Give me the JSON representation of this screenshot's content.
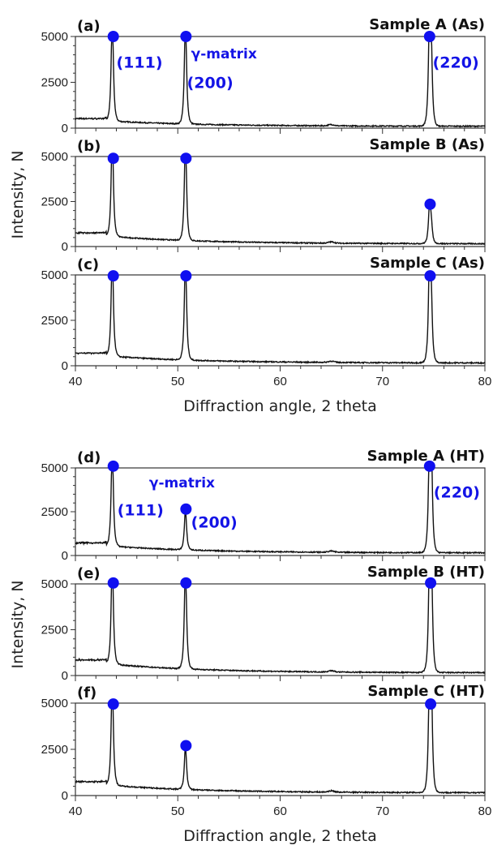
{
  "chart_data": [
    {
      "type": "line",
      "panel": "(a)",
      "title": "Sample A (As)",
      "xlim": [
        40,
        80
      ],
      "ylim": [
        0,
        5000
      ],
      "xticks": [
        40,
        50,
        60,
        70,
        80
      ],
      "yticks": [
        0,
        2500,
        5000
      ],
      "baseline": {
        "start": 520,
        "end": 100
      },
      "peaks": [
        {
          "x": 43.6,
          "y": 5000
        },
        {
          "x": 50.75,
          "y": 5000
        },
        {
          "x": 74.6,
          "y": 5000
        },
        {
          "x": 74.75,
          "y": 3000
        }
      ],
      "markers": [
        {
          "x": 43.7,
          "y": 5000
        },
        {
          "x": 50.8,
          "y": 5000
        },
        {
          "x": 74.6,
          "y": 5000
        }
      ],
      "annotations": [
        {
          "text": "(111)",
          "x": 44.0,
          "y": 3300
        },
        {
          "text": "γ-matrix",
          "x": 51.3,
          "y": 3800
        },
        {
          "text": "(200)",
          "x": 50.9,
          "y": 2200
        },
        {
          "text": "(220)",
          "x": 74.9,
          "y": 3300
        }
      ]
    },
    {
      "type": "line",
      "panel": "(b)",
      "title": "Sample B (As)",
      "xlim": [
        40,
        80
      ],
      "ylim": [
        0,
        5000
      ],
      "xticks": [
        40,
        50,
        60,
        70,
        80
      ],
      "yticks": [
        0,
        2500,
        5000
      ],
      "baseline": {
        "start": 760,
        "end": 150
      },
      "peaks": [
        {
          "x": 43.6,
          "y": 5000
        },
        {
          "x": 50.75,
          "y": 5000
        },
        {
          "x": 74.6,
          "y": 1800
        },
        {
          "x": 74.75,
          "y": 800
        }
      ],
      "markers": [
        {
          "x": 43.7,
          "y": 4900
        },
        {
          "x": 50.8,
          "y": 4900
        },
        {
          "x": 74.65,
          "y": 2350
        }
      ],
      "annotations": []
    },
    {
      "type": "line",
      "panel": "(c)",
      "title": "Sample C (As)",
      "xlim": [
        40,
        80
      ],
      "ylim": [
        0,
        5000
      ],
      "xticks": [
        40,
        50,
        60,
        70,
        80
      ],
      "yticks": [
        0,
        2500,
        5000
      ],
      "baseline": {
        "start": 700,
        "end": 150
      },
      "peaks": [
        {
          "x": 43.6,
          "y": 5000
        },
        {
          "x": 50.75,
          "y": 5000
        },
        {
          "x": 74.6,
          "y": 5000
        },
        {
          "x": 74.75,
          "y": 2400
        }
      ],
      "markers": [
        {
          "x": 43.7,
          "y": 4950
        },
        {
          "x": 50.8,
          "y": 4950
        },
        {
          "x": 74.65,
          "y": 4950
        }
      ],
      "annotations": []
    },
    {
      "type": "line",
      "panel": "(d)",
      "title": "Sample A (HT)",
      "xlim": [
        40,
        80
      ],
      "ylim": [
        0,
        5000
      ],
      "xticks": [
        40,
        50,
        60,
        70,
        80
      ],
      "yticks": [
        0,
        2500,
        5000
      ],
      "baseline": {
        "start": 720,
        "end": 150
      },
      "peaks": [
        {
          "x": 43.6,
          "y": 5000
        },
        {
          "x": 50.75,
          "y": 2000
        },
        {
          "x": 74.6,
          "y": 5000
        },
        {
          "x": 74.75,
          "y": 4800
        }
      ],
      "markers": [
        {
          "x": 43.7,
          "y": 5100
        },
        {
          "x": 50.8,
          "y": 2650
        },
        {
          "x": 74.6,
          "y": 5100
        }
      ],
      "annotations": [
        {
          "text": "γ-matrix",
          "x": 47.2,
          "y": 3900
        },
        {
          "text": "(111)",
          "x": 44.1,
          "y": 2300
        },
        {
          "text": "(200)",
          "x": 51.3,
          "y": 1600
        },
        {
          "text": "(220)",
          "x": 75.0,
          "y": 3300
        }
      ]
    },
    {
      "type": "line",
      "panel": "(e)",
      "title": "Sample B (HT)",
      "xlim": [
        40,
        80
      ],
      "ylim": [
        0,
        5000
      ],
      "xticks": [
        40,
        50,
        60,
        70,
        80
      ],
      "yticks": [
        0,
        2500,
        5000
      ],
      "baseline": {
        "start": 850,
        "end": 150
      },
      "peaks": [
        {
          "x": 43.6,
          "y": 5000
        },
        {
          "x": 50.75,
          "y": 5000
        },
        {
          "x": 74.6,
          "y": 5000
        },
        {
          "x": 74.78,
          "y": 4100
        }
      ],
      "markers": [
        {
          "x": 43.7,
          "y": 5050
        },
        {
          "x": 50.8,
          "y": 5050
        },
        {
          "x": 74.7,
          "y": 5050
        }
      ],
      "annotations": []
    },
    {
      "type": "line",
      "panel": "(f)",
      "title": "Sample C (HT)",
      "xlim": [
        40,
        80
      ],
      "ylim": [
        0,
        5000
      ],
      "xticks": [
        40,
        50,
        60,
        70,
        80
      ],
      "yticks": [
        0,
        2500,
        5000
      ],
      "baseline": {
        "start": 750,
        "end": 150
      },
      "peaks": [
        {
          "x": 43.6,
          "y": 5000
        },
        {
          "x": 50.75,
          "y": 2050
        },
        {
          "x": 74.6,
          "y": 5000
        },
        {
          "x": 74.75,
          "y": 4700
        }
      ],
      "markers": [
        {
          "x": 43.7,
          "y": 4950
        },
        {
          "x": 50.8,
          "y": 2700
        },
        {
          "x": 74.7,
          "y": 4950
        }
      ],
      "annotations": []
    }
  ],
  "labels": {
    "ylabel": "Intensity, N",
    "xlabel": "Diffraction angle, 2 theta"
  },
  "colors": {
    "line": "#111111",
    "marker": "#1010f0",
    "annotation": "#1414e6"
  }
}
